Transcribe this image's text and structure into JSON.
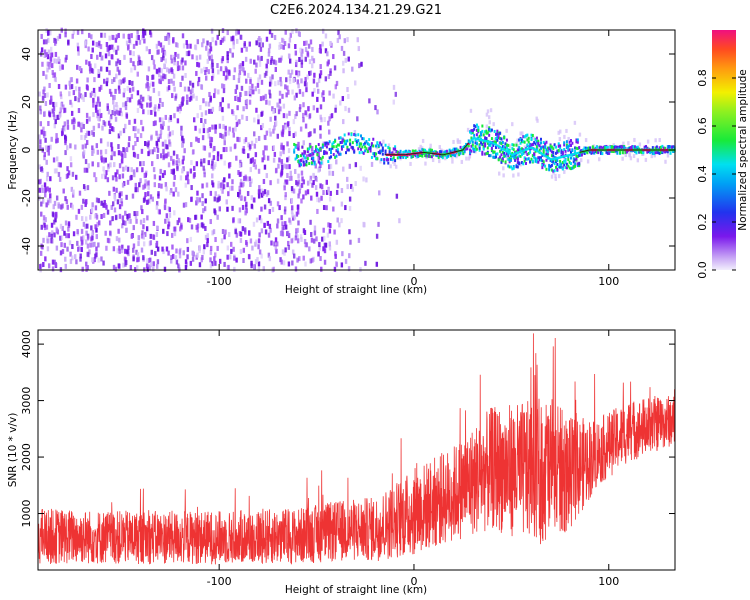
{
  "title": "C2E6.2024.134.21.29.G21",
  "chart_data": [
    {
      "type": "heatmap",
      "xlabel": "Height of straight line (km)",
      "ylabel": "Frequency (Hz)",
      "xlim": [
        -193,
        134
      ],
      "ylim": [
        -50,
        50
      ],
      "xticks": [
        -100,
        0,
        100
      ],
      "xtick_labels": [
        "-100",
        "0",
        "100"
      ],
      "yticks": [
        40,
        20,
        0,
        -20,
        -40
      ],
      "ytick_labels": [
        "40",
        "20",
        "0",
        "-20",
        "-40"
      ],
      "colorbar": {
        "label": "Normalized spectral amplitude",
        "range": [
          0.0,
          1.0
        ],
        "ticks": [
          0.0,
          0.2,
          0.4,
          0.6,
          0.8
        ],
        "tick_labels": [
          "0.0",
          "0.2",
          "0.4",
          "0.6",
          "0.8"
        ],
        "colors": [
          "#f2eefc",
          "#7a18ec",
          "#2233ee",
          "#00e0f0",
          "#18ea3a",
          "#f3f000",
          "#ff7a10",
          "#ff1060"
        ]
      },
      "signal_track": [
        {
          "x": -60,
          "f": -3
        },
        {
          "x": -45,
          "f": -1
        },
        {
          "x": -35,
          "f": 3
        },
        {
          "x": -25,
          "f": 2
        },
        {
          "x": -15,
          "f": -2
        },
        {
          "x": -5,
          "f": -2
        },
        {
          "x": 5,
          "f": -1
        },
        {
          "x": 15,
          "f": -2
        },
        {
          "x": 25,
          "f": 0
        },
        {
          "x": 30,
          "f": 5
        },
        {
          "x": 40,
          "f": 3
        },
        {
          "x": 50,
          "f": -2
        },
        {
          "x": 60,
          "f": 1
        },
        {
          "x": 70,
          "f": -4
        },
        {
          "x": 80,
          "f": -2
        },
        {
          "x": 90,
          "f": 0
        },
        {
          "x": 110,
          "f": 0
        },
        {
          "x": 134,
          "f": 0
        }
      ],
      "grid": false
    },
    {
      "type": "line",
      "xlabel": "Height of straight line (km)",
      "ylabel": "SNR (10 * v/v)",
      "xlim": [
        -193,
        134
      ],
      "ylim": [
        0,
        4250
      ],
      "xticks": [
        -100,
        0,
        100
      ],
      "xtick_labels": [
        "-100",
        "0",
        "100"
      ],
      "yticks": [
        1000,
        2000,
        3000,
        4000
      ],
      "ytick_labels": [
        "1000",
        "2000",
        "3000",
        "4000"
      ],
      "line_color": "#ee3333",
      "envelope": [
        {
          "x": -193,
          "low": 100,
          "high": 1100
        },
        {
          "x": -150,
          "low": 100,
          "high": 1050
        },
        {
          "x": -100,
          "low": 100,
          "high": 1050
        },
        {
          "x": -60,
          "low": 100,
          "high": 1100
        },
        {
          "x": -35,
          "low": 150,
          "high": 1250
        },
        {
          "x": -20,
          "low": 150,
          "high": 1300
        },
        {
          "x": 0,
          "low": 250,
          "high": 1800
        },
        {
          "x": 20,
          "low": 500,
          "high": 2200
        },
        {
          "x": 40,
          "low": 700,
          "high": 2900
        },
        {
          "x": 60,
          "low": 500,
          "high": 3000
        },
        {
          "x": 70,
          "low": 400,
          "high": 3100
        },
        {
          "x": 80,
          "low": 700,
          "high": 2700
        },
        {
          "x": 95,
          "low": 1500,
          "high": 2700
        },
        {
          "x": 110,
          "low": 1900,
          "high": 3000
        },
        {
          "x": 125,
          "low": 2100,
          "high": 3100
        },
        {
          "x": 134,
          "low": 2200,
          "high": 3100
        }
      ],
      "peak_max": 4200,
      "grid": false
    }
  ]
}
